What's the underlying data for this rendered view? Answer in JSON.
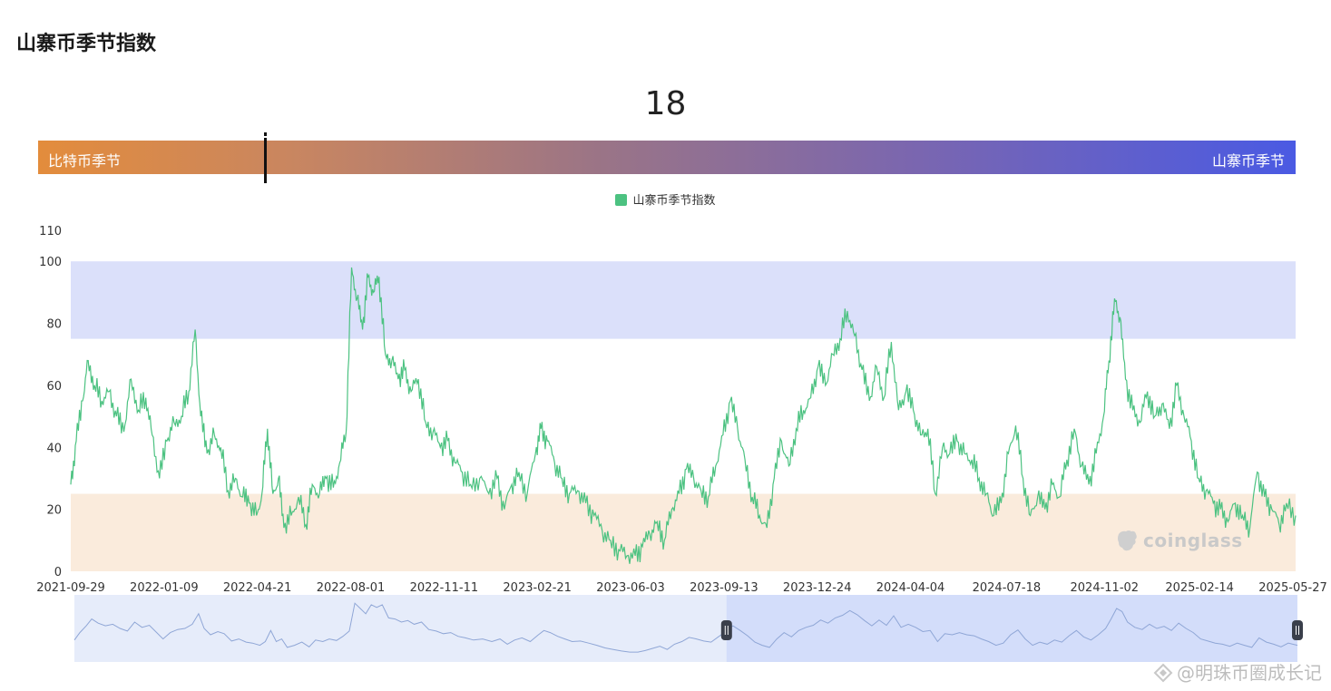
{
  "page": {
    "title": "山寨币季节指数"
  },
  "indicator": {
    "current_value": "18",
    "left_label": "比特币季节",
    "right_label": "山寨币季节",
    "position_fraction": 0.18,
    "gradient_start": "#e38c3c",
    "gradient_end": "#4a5ae3"
  },
  "legend": {
    "label": "山寨币季节指数",
    "color": "#4cc281"
  },
  "watermark": {
    "text": "coinglass"
  },
  "credit": {
    "text": "@明珠币圈成长记"
  },
  "colors": {
    "line": "#4cc281",
    "upper_band": "#dbe0fa",
    "lower_band": "#faebdc",
    "navigator_fill": "#e6ecfa",
    "navigator_line": "#8fa6d6",
    "navigator_selected": "#d3ddfa"
  },
  "chart_data": {
    "type": "line",
    "series": [
      {
        "name": "山寨币季节指数",
        "color": "#4cc281"
      }
    ],
    "x_ticks": [
      "2021-09-29",
      "2022-01-09",
      "2022-04-21",
      "2022-08-01",
      "2022-11-11",
      "2023-02-21",
      "2023-06-03",
      "2023-09-13",
      "2023-12-24",
      "2024-04-04",
      "2024-07-18",
      "2024-11-02",
      "2025-02-14",
      "2025-05-27"
    ],
    "x_range": [
      "2021-09-29",
      "2025-05-30"
    ],
    "y_ticks": [
      0,
      20,
      40,
      60,
      80,
      100,
      110
    ],
    "ylim": [
      0,
      110
    ],
    "bands": [
      {
        "from": 75,
        "to": 100,
        "label": "山寨币季节",
        "color": "#dbe0fa"
      },
      {
        "from": 0,
        "to": 25,
        "label": "比特币季节",
        "color": "#faebdc"
      }
    ],
    "points": [
      [
        "2021-09-29",
        28
      ],
      [
        "2021-10-05",
        42
      ],
      [
        "2021-10-12",
        55
      ],
      [
        "2021-10-18",
        68
      ],
      [
        "2021-10-25",
        60
      ],
      [
        "2021-11-02",
        55
      ],
      [
        "2021-11-10",
        58
      ],
      [
        "2021-11-18",
        50
      ],
      [
        "2021-11-26",
        45
      ],
      [
        "2021-12-04",
        62
      ],
      [
        "2021-12-12",
        52
      ],
      [
        "2021-12-20",
        56
      ],
      [
        "2021-12-27",
        44
      ],
      [
        "2022-01-04",
        30
      ],
      [
        "2022-01-12",
        42
      ],
      [
        "2022-01-20",
        48
      ],
      [
        "2022-01-28",
        50
      ],
      [
        "2022-02-05",
        58
      ],
      [
        "2022-02-12",
        78
      ],
      [
        "2022-02-18",
        50
      ],
      [
        "2022-02-25",
        38
      ],
      [
        "2022-03-05",
        44
      ],
      [
        "2022-03-12",
        40
      ],
      [
        "2022-03-20",
        26
      ],
      [
        "2022-03-28",
        30
      ],
      [
        "2022-04-05",
        24
      ],
      [
        "2022-04-12",
        22
      ],
      [
        "2022-04-20",
        18
      ],
      [
        "2022-04-26",
        25
      ],
      [
        "2022-05-02",
        46
      ],
      [
        "2022-05-08",
        25
      ],
      [
        "2022-05-14",
        30
      ],
      [
        "2022-05-20",
        14
      ],
      [
        "2022-05-28",
        18
      ],
      [
        "2022-06-05",
        24
      ],
      [
        "2022-06-13",
        15
      ],
      [
        "2022-06-20",
        28
      ],
      [
        "2022-06-28",
        25
      ],
      [
        "2022-07-05",
        30
      ],
      [
        "2022-07-13",
        27
      ],
      [
        "2022-07-20",
        35
      ],
      [
        "2022-07-27",
        45
      ],
      [
        "2022-08-02",
        98
      ],
      [
        "2022-08-08",
        88
      ],
      [
        "2022-08-14",
        78
      ],
      [
        "2022-08-20",
        95
      ],
      [
        "2022-08-26",
        90
      ],
      [
        "2022-09-01",
        95
      ],
      [
        "2022-09-08",
        70
      ],
      [
        "2022-09-15",
        68
      ],
      [
        "2022-09-22",
        62
      ],
      [
        "2022-09-29",
        65
      ],
      [
        "2022-10-06",
        58
      ],
      [
        "2022-10-14",
        62
      ],
      [
        "2022-10-22",
        48
      ],
      [
        "2022-10-30",
        45
      ],
      [
        "2022-11-07",
        40
      ],
      [
        "2022-11-15",
        42
      ],
      [
        "2022-11-23",
        35
      ],
      [
        "2022-12-01",
        32
      ],
      [
        "2022-12-10",
        28
      ],
      [
        "2022-12-20",
        30
      ],
      [
        "2022-12-30",
        25
      ],
      [
        "2023-01-08",
        30
      ],
      [
        "2023-01-16",
        20
      ],
      [
        "2023-01-24",
        28
      ],
      [
        "2023-02-01",
        32
      ],
      [
        "2023-02-10",
        25
      ],
      [
        "2023-02-19",
        38
      ],
      [
        "2023-02-25",
        46
      ],
      [
        "2023-03-04",
        42
      ],
      [
        "2023-03-12",
        35
      ],
      [
        "2023-03-20",
        30
      ],
      [
        "2023-03-28",
        25
      ],
      [
        "2023-04-06",
        26
      ],
      [
        "2023-04-15",
        22
      ],
      [
        "2023-04-24",
        18
      ],
      [
        "2023-05-03",
        13
      ],
      [
        "2023-05-12",
        10
      ],
      [
        "2023-05-21",
        7
      ],
      [
        "2023-05-30",
        5
      ],
      [
        "2023-06-08",
        5
      ],
      [
        "2023-06-16",
        8
      ],
      [
        "2023-06-24",
        12
      ],
      [
        "2023-07-02",
        16
      ],
      [
        "2023-07-10",
        10
      ],
      [
        "2023-07-18",
        20
      ],
      [
        "2023-07-26",
        25
      ],
      [
        "2023-08-03",
        33
      ],
      [
        "2023-08-11",
        30
      ],
      [
        "2023-08-19",
        26
      ],
      [
        "2023-08-27",
        24
      ],
      [
        "2023-09-04",
        34
      ],
      [
        "2023-09-12",
        44
      ],
      [
        "2023-09-20",
        55
      ],
      [
        "2023-09-28",
        46
      ],
      [
        "2023-10-06",
        36
      ],
      [
        "2023-10-14",
        24
      ],
      [
        "2023-10-22",
        18
      ],
      [
        "2023-10-30",
        14
      ],
      [
        "2023-11-07",
        30
      ],
      [
        "2023-11-15",
        42
      ],
      [
        "2023-11-23",
        34
      ],
      [
        "2023-12-01",
        46
      ],
      [
        "2023-12-09",
        52
      ],
      [
        "2023-12-17",
        56
      ],
      [
        "2023-12-25",
        66
      ],
      [
        "2024-01-02",
        60
      ],
      [
        "2024-01-10",
        70
      ],
      [
        "2024-01-18",
        75
      ],
      [
        "2024-01-26",
        84
      ],
      [
        "2024-02-03",
        76
      ],
      [
        "2024-02-11",
        65
      ],
      [
        "2024-02-19",
        55
      ],
      [
        "2024-02-27",
        66
      ],
      [
        "2024-03-06",
        56
      ],
      [
        "2024-03-14",
        74
      ],
      [
        "2024-03-22",
        52
      ],
      [
        "2024-03-30",
        58
      ],
      [
        "2024-04-07",
        52
      ],
      [
        "2024-04-15",
        44
      ],
      [
        "2024-04-23",
        46
      ],
      [
        "2024-05-01",
        25
      ],
      [
        "2024-05-09",
        40
      ],
      [
        "2024-05-17",
        38
      ],
      [
        "2024-05-25",
        42
      ],
      [
        "2024-06-02",
        38
      ],
      [
        "2024-06-10",
        36
      ],
      [
        "2024-06-18",
        30
      ],
      [
        "2024-06-26",
        25
      ],
      [
        "2024-07-04",
        18
      ],
      [
        "2024-07-12",
        22
      ],
      [
        "2024-07-20",
        38
      ],
      [
        "2024-07-28",
        47
      ],
      [
        "2024-08-05",
        30
      ],
      [
        "2024-08-13",
        18
      ],
      [
        "2024-08-21",
        24
      ],
      [
        "2024-08-29",
        20
      ],
      [
        "2024-09-06",
        28
      ],
      [
        "2024-09-14",
        24
      ],
      [
        "2024-09-22",
        36
      ],
      [
        "2024-09-30",
        46
      ],
      [
        "2024-10-08",
        34
      ],
      [
        "2024-10-16",
        28
      ],
      [
        "2024-10-24",
        38
      ],
      [
        "2024-11-01",
        50
      ],
      [
        "2024-11-07",
        68
      ],
      [
        "2024-11-13",
        88
      ],
      [
        "2024-11-19",
        82
      ],
      [
        "2024-11-25",
        62
      ],
      [
        "2024-12-03",
        52
      ],
      [
        "2024-12-11",
        48
      ],
      [
        "2024-12-19",
        58
      ],
      [
        "2024-12-27",
        50
      ],
      [
        "2025-01-04",
        54
      ],
      [
        "2025-01-12",
        46
      ],
      [
        "2025-01-20",
        60
      ],
      [
        "2025-01-28",
        50
      ],
      [
        "2025-02-05",
        42
      ],
      [
        "2025-02-13",
        30
      ],
      [
        "2025-02-21",
        26
      ],
      [
        "2025-03-01",
        22
      ],
      [
        "2025-03-09",
        20
      ],
      [
        "2025-03-17",
        16
      ],
      [
        "2025-03-25",
        22
      ],
      [
        "2025-04-02",
        18
      ],
      [
        "2025-04-10",
        14
      ],
      [
        "2025-04-18",
        32
      ],
      [
        "2025-04-26",
        24
      ],
      [
        "2025-05-04",
        20
      ],
      [
        "2025-05-12",
        15
      ],
      [
        "2025-05-20",
        22
      ],
      [
        "2025-05-30",
        18
      ]
    ],
    "navigator": {
      "selected_from": "2023-09-13",
      "selected_to": "2025-05-30"
    },
    "grid": false,
    "legend_position": "top-center"
  }
}
